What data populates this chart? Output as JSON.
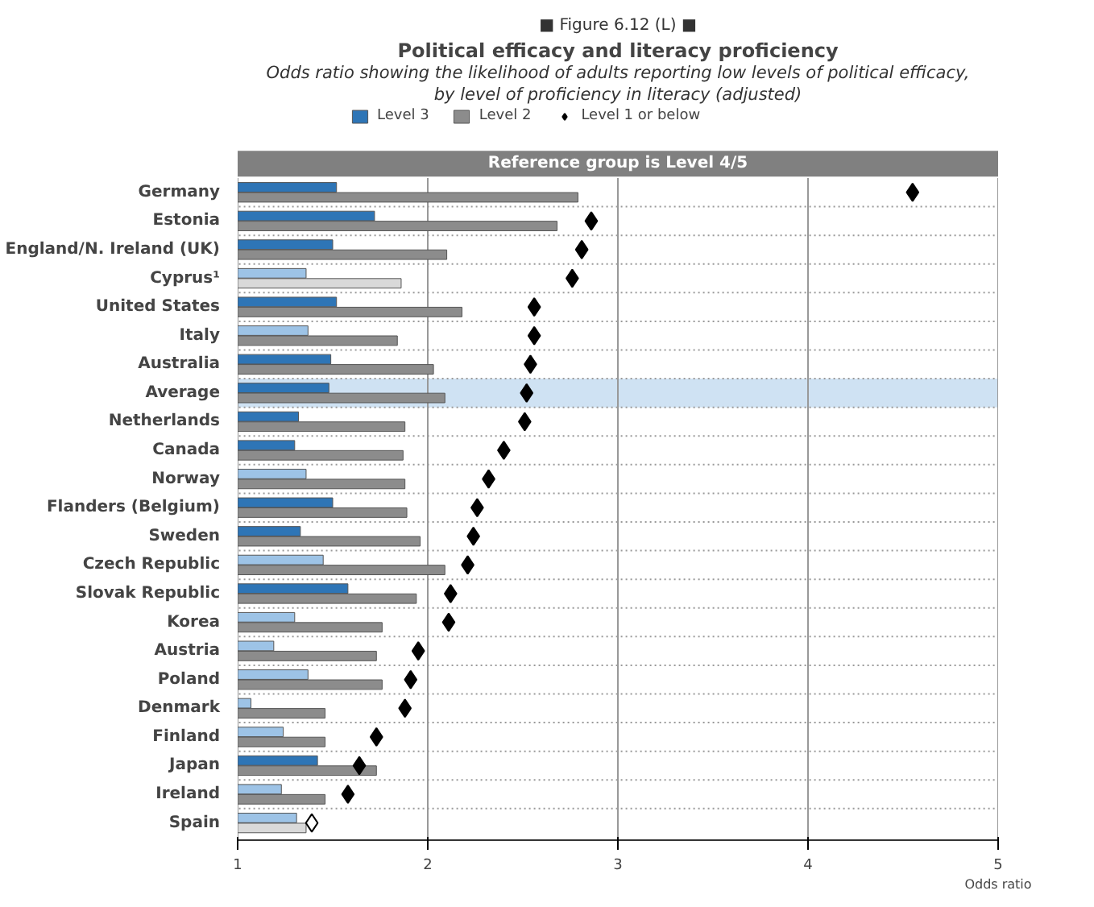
{
  "chart_data": {
    "type": "bar",
    "orientation": "horizontal",
    "title": "Political efficacy and literacy proficiency",
    "subtitle": "Odds ratio showing the likelihood of adults reporting low levels of political efficacy,\nby level of proficiency in literacy (adjusted)",
    "xlabel": "Odds ratio",
    "annotations": [
      "■ Figure 6.12 (L) ■",
      "Reference group is Level 4/5"
    ],
    "categories": [
      "Germany",
      "Estonia",
      "England/N. Ireland (UK)",
      "Cyprus¹",
      "United States",
      "Italy",
      "Australia",
      "Average",
      "Netherlands",
      "Canada",
      "Norway",
      "Flanders (Belgium)",
      "Sweden",
      "Czech Republic",
      "Slovak Republic",
      "Korea",
      "Austria",
      "Poland",
      "Denmark",
      "Finland",
      "Japan",
      "Ireland",
      "Spain"
    ],
    "series": [
      {
        "name": "Level 3",
        "color": "#2e75b6",
        "values": [
          1.52,
          1.72,
          1.5,
          1.36,
          1.52,
          1.37,
          1.49,
          1.48,
          1.32,
          1.3,
          1.36,
          1.5,
          1.33,
          1.45,
          1.58,
          1.3,
          1.19,
          1.37,
          1.07,
          1.24,
          1.42,
          1.23,
          1.31
        ],
        "colors": [
          "#2e75b6",
          "#2e75b6",
          "#2e75b6",
          "#9dc3e6",
          "#2e75b6",
          "#9dc3e6",
          "#2e75b6",
          "#2e75b6",
          "#2e75b6",
          "#2e75b6",
          "#9dc3e6",
          "#2e75b6",
          "#2e75b6",
          "#9dc3e6",
          "#2e75b6",
          "#9dc3e6",
          "#9dc3e6",
          "#9dc3e6",
          "#9dc3e6",
          "#9dc3e6",
          "#2e75b6",
          "#9dc3e6",
          "#9dc3e6"
        ]
      },
      {
        "name": "Level 2",
        "color": "#8c8c8c",
        "values": [
          2.79,
          2.68,
          2.1,
          1.86,
          2.18,
          1.84,
          2.03,
          2.09,
          1.88,
          1.87,
          1.88,
          1.89,
          1.96,
          2.09,
          1.94,
          1.76,
          1.73,
          1.76,
          1.46,
          1.46,
          1.73,
          1.46,
          1.36
        ],
        "colors": [
          "#8c8c8c",
          "#8c8c8c",
          "#8c8c8c",
          "#d9d9d9",
          "#8c8c8c",
          "#8c8c8c",
          "#8c8c8c",
          "#8c8c8c",
          "#8c8c8c",
          "#8c8c8c",
          "#8c8c8c",
          "#8c8c8c",
          "#8c8c8c",
          "#8c8c8c",
          "#8c8c8c",
          "#8c8c8c",
          "#8c8c8c",
          "#8c8c8c",
          "#8c8c8c",
          "#8c8c8c",
          "#8c8c8c",
          "#8c8c8c",
          "#d9d9d9"
        ]
      },
      {
        "name": "Level 1 or below",
        "type": "scatter",
        "marker": "diamond",
        "color": "#000000",
        "values": [
          4.55,
          2.86,
          2.81,
          2.76,
          2.56,
          2.56,
          2.54,
          2.52,
          2.51,
          2.4,
          2.32,
          2.26,
          2.24,
          2.21,
          2.12,
          2.11,
          1.95,
          1.91,
          1.88,
          1.73,
          1.64,
          1.58,
          1.39
        ],
        "colors": [
          "#000000",
          "#000000",
          "#000000",
          "#000000",
          "#000000",
          "#000000",
          "#000000",
          "#000000",
          "#000000",
          "#000000",
          "#000000",
          "#000000",
          "#000000",
          "#000000",
          "#000000",
          "#000000",
          "#000000",
          "#000000",
          "#000000",
          "#000000",
          "#000000",
          "#000000",
          "#ffffff"
        ]
      }
    ],
    "bands": [
      {
        "axis": "y",
        "from": "Average",
        "to": "Average",
        "color": "#cfe2f3"
      }
    ],
    "xlim": [
      1,
      5
    ],
    "xticks": [
      1,
      2,
      3,
      4,
      5
    ],
    "grid": true,
    "legend": "top"
  }
}
